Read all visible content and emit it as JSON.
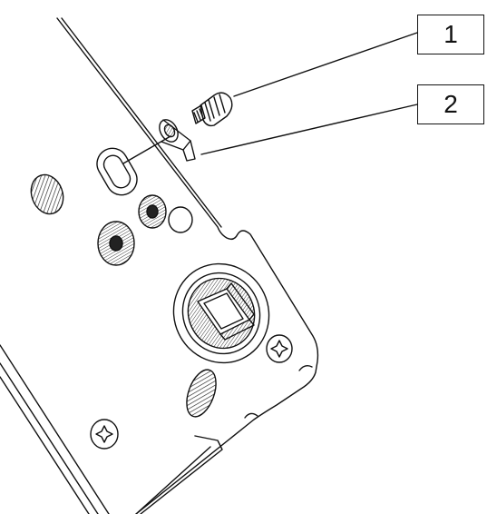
{
  "callouts": [
    {
      "label": "1",
      "refers_to": "thumb-screw"
    },
    {
      "label": "2",
      "refers_to": "ground-lug"
    }
  ],
  "colors": {
    "line": "#111111",
    "background": "#ffffff",
    "hatch": "#222222"
  }
}
